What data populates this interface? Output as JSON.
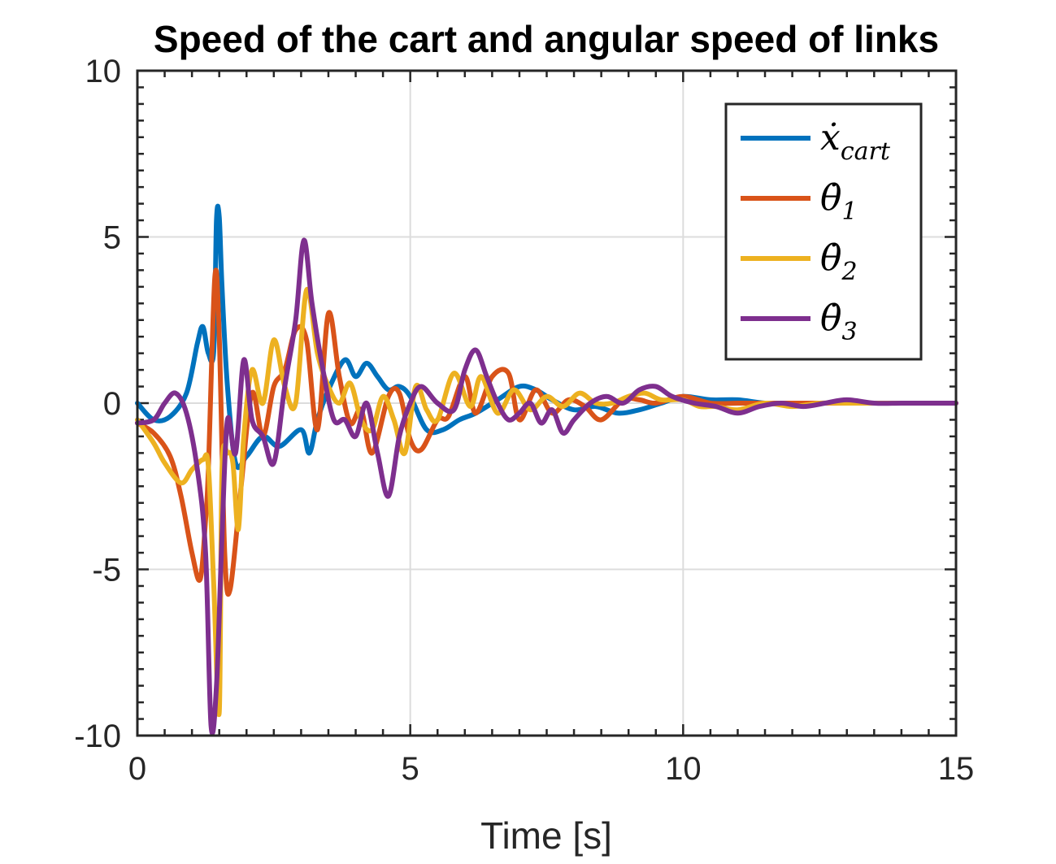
{
  "chart_data": {
    "type": "line",
    "title": "Speed of the cart and angular speed of links",
    "xlabel": "Time [s]",
    "ylabel": "",
    "xlim": [
      0,
      15
    ],
    "ylim": [
      -10,
      10
    ],
    "xticks": [
      0,
      5,
      10,
      15
    ],
    "yticks": [
      -10,
      -5,
      0,
      5,
      10
    ],
    "xtick_labels": [
      "0",
      "5",
      "10",
      "15"
    ],
    "ytick_labels": [
      "-10",
      "-5",
      "0",
      "5",
      "10"
    ],
    "grid": true,
    "legend_position": "top-right",
    "series": [
      {
        "name": "ẋ",
        "name_sub": "cart",
        "color": "#0072BD",
        "x": [
          0,
          0.3,
          0.6,
          0.9,
          1.1,
          1.2,
          1.3,
          1.4,
          1.45,
          1.5,
          1.55,
          1.65,
          1.8,
          2.0,
          2.3,
          2.6,
          3.0,
          3.15,
          3.3,
          3.5,
          3.8,
          4.0,
          4.2,
          4.4,
          4.6,
          4.8,
          5.0,
          5.3,
          5.6,
          5.9,
          6.2,
          6.6,
          7.0,
          7.3,
          7.6,
          8.0,
          8.4,
          8.8,
          9.2,
          9.6,
          10.0,
          10.5,
          11.0,
          11.5,
          12.0,
          12.5,
          13.0,
          14.0,
          15.0
        ],
        "y": [
          0,
          -0.5,
          -0.4,
          0.3,
          1.8,
          2.3,
          1.5,
          1.6,
          5.5,
          5.6,
          3.5,
          0.5,
          -1.8,
          -1.6,
          -1.0,
          -1.3,
          -0.8,
          -1.5,
          -0.5,
          0.4,
          1.3,
          0.8,
          1.2,
          0.8,
          0.4,
          0.5,
          0.2,
          -0.8,
          -0.8,
          -0.5,
          -0.3,
          0.1,
          0.5,
          0.4,
          0.1,
          -0.2,
          -0.1,
          -0.3,
          -0.2,
          0.0,
          0.2,
          0.1,
          0.1,
          0.0,
          0.0,
          0.0,
          0.0,
          0.0,
          0.0
        ]
      },
      {
        "name": "θ̇",
        "name_sub": "1",
        "color": "#D95319",
        "x": [
          0,
          0.3,
          0.6,
          0.8,
          1.0,
          1.15,
          1.25,
          1.3,
          1.42,
          1.5,
          1.6,
          1.7,
          1.9,
          2.1,
          2.3,
          2.5,
          2.7,
          2.9,
          3.1,
          3.3,
          3.5,
          3.7,
          3.9,
          4.1,
          4.3,
          4.6,
          4.8,
          5.0,
          5.2,
          5.5,
          5.7,
          6.0,
          6.2,
          6.5,
          6.8,
          7.0,
          7.3,
          7.6,
          7.9,
          8.2,
          8.5,
          8.9,
          9.2,
          9.5,
          10.0,
          10.5,
          11.0,
          11.5,
          12.0,
          13.0,
          14.0,
          15.0
        ],
        "y": [
          -0.6,
          -0.9,
          -1.6,
          -2.8,
          -4.5,
          -5.3,
          -3.5,
          -2.0,
          3.8,
          2.0,
          -4.5,
          -5.6,
          -2.5,
          0.3,
          -1.0,
          0.5,
          1.0,
          2.2,
          1.9,
          -0.8,
          2.7,
          0.8,
          -0.6,
          -0.2,
          -1.5,
          0.2,
          0.3,
          -1.1,
          -1.4,
          -0.5,
          -0.4,
          0.8,
          -0.3,
          0.8,
          0.9,
          -0.5,
          0.4,
          -0.3,
          0.1,
          -0.1,
          -0.5,
          0.1,
          0.1,
          0.0,
          0.2,
          0.0,
          0.0,
          0.0,
          0.0,
          0.0,
          0.0,
          0.0
        ]
      },
      {
        "name": "θ̇",
        "name_sub": "2",
        "color": "#EDB120",
        "x": [
          0,
          0.3,
          0.5,
          0.8,
          1.0,
          1.2,
          1.3,
          1.4,
          1.5,
          1.55,
          1.65,
          1.75,
          1.85,
          1.95,
          2.1,
          2.3,
          2.5,
          2.7,
          2.9,
          3.1,
          3.3,
          3.5,
          3.7,
          3.9,
          4.1,
          4.3,
          4.5,
          4.7,
          4.9,
          5.1,
          5.3,
          5.5,
          5.8,
          6.1,
          6.3,
          6.6,
          6.9,
          7.2,
          7.5,
          7.8,
          8.1,
          8.4,
          8.7,
          9.0,
          9.3,
          9.6,
          10.0,
          10.3,
          10.6,
          11.0,
          11.5,
          12.0,
          12.5,
          13.0,
          14.0,
          15.0
        ],
        "y": [
          -0.5,
          -1.2,
          -1.8,
          -2.4,
          -2.0,
          -1.7,
          -1.9,
          -5.5,
          -9.3,
          -2.0,
          -1.5,
          -1.8,
          -3.8,
          -1.0,
          1.0,
          0.0,
          1.9,
          0.5,
          0.0,
          3.4,
          1.5,
          0.5,
          0.0,
          0.6,
          -0.5,
          -0.8,
          0.2,
          -0.5,
          -1.5,
          0.5,
          -0.2,
          -0.5,
          0.9,
          -0.1,
          0.8,
          -0.3,
          0.4,
          -0.2,
          0.2,
          -0.1,
          0.3,
          0.0,
          0.0,
          0.2,
          0.3,
          0.1,
          0.1,
          -0.1,
          -0.1,
          -0.2,
          0.0,
          -0.1,
          0.0,
          0.0,
          0.0,
          0.0
        ]
      },
      {
        "name": "θ̇",
        "name_sub": "3",
        "color": "#7E2F8E",
        "x": [
          0,
          0.3,
          0.5,
          0.7,
          0.9,
          1.1,
          1.25,
          1.35,
          1.45,
          1.55,
          1.65,
          1.8,
          1.95,
          2.1,
          2.3,
          2.5,
          2.7,
          2.9,
          3.05,
          3.2,
          3.4,
          3.6,
          3.8,
          4.0,
          4.2,
          4.4,
          4.6,
          4.8,
          5.0,
          5.2,
          5.5,
          5.8,
          6.0,
          6.2,
          6.4,
          6.6,
          6.8,
          7.0,
          7.2,
          7.4,
          7.6,
          7.8,
          8.0,
          8.3,
          8.6,
          8.9,
          9.2,
          9.5,
          9.8,
          10.2,
          10.6,
          11.0,
          11.4,
          11.8,
          12.2,
          12.6,
          13.0,
          13.5,
          14.0,
          14.5,
          15.0
        ],
        "y": [
          -0.6,
          -0.5,
          0.0,
          0.3,
          -0.3,
          -2.0,
          -4.5,
          -9.7,
          -8.5,
          -4.0,
          -0.5,
          -1.5,
          1.3,
          -0.5,
          -1.0,
          -1.8,
          0.5,
          2.5,
          4.9,
          3.0,
          1.0,
          -0.5,
          -0.5,
          -1.0,
          0.0,
          -1.5,
          -2.8,
          -1.0,
          0.0,
          0.5,
          0.0,
          -0.2,
          1.0,
          1.6,
          0.8,
          0.0,
          -0.5,
          -0.3,
          0.0,
          -0.6,
          -0.2,
          -0.9,
          -0.5,
          0.0,
          0.2,
          0.0,
          0.4,
          0.5,
          0.2,
          0.0,
          -0.1,
          -0.3,
          -0.1,
          0.0,
          -0.1,
          0.0,
          0.1,
          0.0,
          0.0,
          0.0,
          0.0
        ]
      }
    ]
  }
}
